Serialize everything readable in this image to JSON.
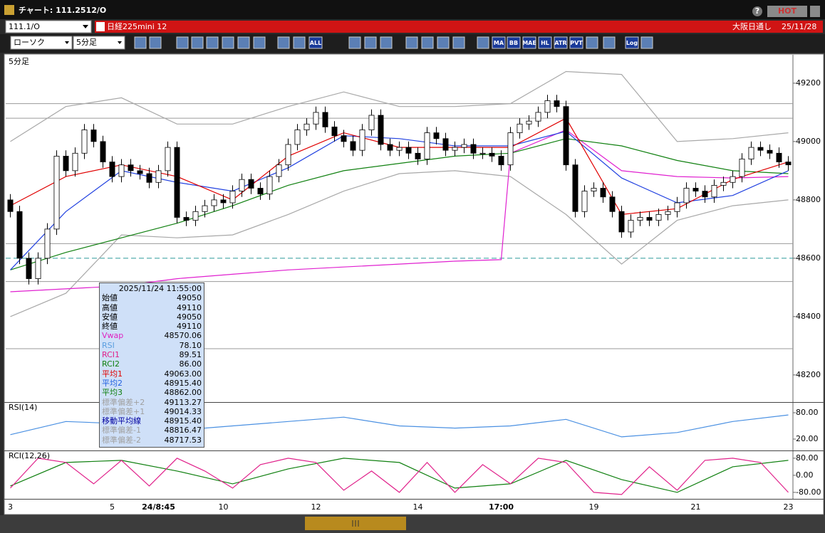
{
  "window": {
    "title": "チャート: 111.2512/O",
    "help": "?",
    "hot": "HOT"
  },
  "toolbar": {
    "symbol_code": "111.1/O",
    "symbol_name": "日経225mini 12",
    "market": "大阪日通し",
    "date": "25/11/28",
    "chart_kind": "ローソク",
    "interval": "5分足",
    "icon_labels": [
      "ALL",
      "MA",
      "BB",
      "MAE",
      "HL",
      "ATR",
      "PVT",
      "Log"
    ]
  },
  "info_panel": {
    "datetime": "2025/11/24  11:55:00",
    "rows": [
      {
        "label": "始値",
        "value": "49050",
        "color": "#000000"
      },
      {
        "label": "高値",
        "value": "49110",
        "color": "#000000"
      },
      {
        "label": "安値",
        "value": "49050",
        "color": "#000000"
      },
      {
        "label": "終値",
        "value": "49110",
        "color": "#000000"
      },
      {
        "label": "Vwap",
        "value": "48570.06",
        "color": "#e020c0"
      },
      {
        "label": "RSI",
        "value": "78.10",
        "color": "#5a9ee0"
      },
      {
        "label": "RCI1",
        "value": "89.51",
        "color": "#e0208a"
      },
      {
        "label": "RCI2",
        "value": "86.00",
        "color": "#108010"
      },
      {
        "label": "平均1",
        "value": "49063.00",
        "color": "#e00000"
      },
      {
        "label": "平均2",
        "value": "48915.40",
        "color": "#2060e0"
      },
      {
        "label": "平均3",
        "value": "48862.00",
        "color": "#108010"
      },
      {
        "label": "標準偏差+2",
        "value": "49113.27",
        "color": "#a0a0a0"
      },
      {
        "label": "標準偏差+1",
        "value": "49014.33",
        "color": "#a0a0a0"
      },
      {
        "label": "移動平均線",
        "value": "48915.40",
        "color": "#0000a0"
      },
      {
        "label": "標準偏差-1",
        "value": "48816.47",
        "color": "#a0a0a0"
      },
      {
        "label": "標準偏差-2",
        "value": "48717.53",
        "color": "#a0a0a0"
      }
    ]
  },
  "chart_data": [
    {
      "type": "candlestick",
      "label": "5分足",
      "xlim": [
        -0.5,
        84.5
      ],
      "ylim": [
        48107,
        49290
      ],
      "yticks": [
        48200,
        48400,
        48600,
        48800,
        49000,
        49200
      ],
      "categories": [
        "3",
        null,
        null,
        null,
        null,
        null,
        null,
        null,
        null,
        null,
        null,
        "5",
        null,
        null,
        null,
        null,
        "24/8:45",
        null,
        null,
        null,
        null,
        null,
        null,
        "10",
        null,
        null,
        null,
        null,
        null,
        null,
        null,
        null,
        null,
        "12",
        null,
        null,
        null,
        null,
        null,
        null,
        null,
        null,
        null,
        null,
        "14",
        null,
        null,
        null,
        null,
        null,
        null,
        null,
        null,
        "17:00",
        null,
        null,
        null,
        null,
        null,
        null,
        null,
        null,
        null,
        "19",
        null,
        null,
        null,
        null,
        null,
        null,
        null,
        null,
        null,
        null,
        "21",
        null,
        null,
        null,
        null,
        null,
        null,
        null,
        null,
        null,
        "23"
      ],
      "up_color": "#ffffff",
      "down_color": "#000000",
      "ohlc": [
        [
          48800,
          48820,
          48740,
          48760
        ],
        [
          48760,
          48780,
          48580,
          48600
        ],
        [
          48600,
          48620,
          48510,
          48530
        ],
        [
          48530,
          48620,
          48510,
          48600
        ],
        [
          48600,
          48720,
          48580,
          48700
        ],
        [
          48700,
          48970,
          48680,
          48950
        ],
        [
          48950,
          48970,
          48880,
          48900
        ],
        [
          48900,
          48980,
          48880,
          48960
        ],
        [
          48960,
          49060,
          48940,
          49040
        ],
        [
          49040,
          49060,
          48980,
          49000
        ],
        [
          49000,
          49020,
          48910,
          48930
        ],
        [
          48930,
          48950,
          48860,
          48880
        ],
        [
          48880,
          48940,
          48860,
          48920
        ],
        [
          48920,
          48940,
          48880,
          48900
        ],
        [
          48900,
          48920,
          48870,
          48890
        ],
        [
          48890,
          48910,
          48840,
          48860
        ],
        [
          48860,
          48920,
          48840,
          48900
        ],
        [
          48900,
          49000,
          48880,
          48980
        ],
        [
          48980,
          49000,
          48720,
          48740
        ],
        [
          48740,
          48760,
          48710,
          48730
        ],
        [
          48730,
          48780,
          48710,
          48760
        ],
        [
          48760,
          48800,
          48740,
          48780
        ],
        [
          48780,
          48820,
          48760,
          48800
        ],
        [
          48800,
          48820,
          48770,
          48790
        ],
        [
          48790,
          48850,
          48770,
          48830
        ],
        [
          48830,
          48890,
          48810,
          48870
        ],
        [
          48870,
          48890,
          48820,
          48840
        ],
        [
          48840,
          48860,
          48800,
          48820
        ],
        [
          48820,
          48900,
          48800,
          48880
        ],
        [
          48880,
          48940,
          48860,
          48920
        ],
        [
          48920,
          49010,
          48900,
          48990
        ],
        [
          48990,
          49060,
          48970,
          49040
        ],
        [
          49040,
          49080,
          49020,
          49060
        ],
        [
          49060,
          49120,
          49040,
          49100
        ],
        [
          49100,
          49120,
          49030,
          49050
        ],
        [
          49050,
          49070,
          49000,
          49020
        ],
        [
          49020,
          49040,
          48980,
          49000
        ],
        [
          49000,
          49020,
          48950,
          48970
        ],
        [
          48970,
          49060,
          48950,
          49040
        ],
        [
          49040,
          49110,
          49020,
          49090
        ],
        [
          49090,
          49110,
          48970,
          48990
        ],
        [
          48990,
          49010,
          48950,
          48970
        ],
        [
          48970,
          49000,
          48950,
          48980
        ],
        [
          48980,
          49000,
          48940,
          48960
        ],
        [
          48960,
          48980,
          48920,
          48940
        ],
        [
          48940,
          49050,
          48920,
          49030
        ],
        [
          49030,
          49050,
          48990,
          49010
        ],
        [
          49010,
          49030,
          48950,
          48970
        ],
        [
          48970,
          49000,
          48950,
          48980
        ],
        [
          48980,
          49010,
          48960,
          48990
        ],
        [
          48990,
          49010,
          48940,
          48960
        ],
        [
          48960,
          48980,
          48940,
          48960
        ],
        [
          48960,
          48980,
          48930,
          48950
        ],
        [
          48950,
          48970,
          48900,
          48920
        ],
        [
          48920,
          49050,
          48900,
          49030
        ],
        [
          49030,
          49080,
          49010,
          49060
        ],
        [
          49060,
          49090,
          49040,
          49070
        ],
        [
          49070,
          49120,
          49050,
          49100
        ],
        [
          49100,
          49160,
          49080,
          49140
        ],
        [
          49140,
          49160,
          49100,
          49120
        ],
        [
          49120,
          49140,
          48900,
          48920
        ],
        [
          48920,
          48940,
          48740,
          48760
        ],
        [
          48760,
          48850,
          48740,
          48830
        ],
        [
          48830,
          48860,
          48810,
          48840
        ],
        [
          48840,
          48860,
          48790,
          48810
        ],
        [
          48810,
          48830,
          48740,
          48760
        ],
        [
          48760,
          48780,
          48670,
          48690
        ],
        [
          48690,
          48750,
          48670,
          48730
        ],
        [
          48730,
          48760,
          48710,
          48740
        ],
        [
          48740,
          48760,
          48710,
          48730
        ],
        [
          48730,
          48770,
          48710,
          48750
        ],
        [
          48750,
          48780,
          48730,
          48760
        ],
        [
          48760,
          48810,
          48740,
          48790
        ],
        [
          48790,
          48860,
          48770,
          48840
        ],
        [
          48840,
          48860,
          48810,
          48830
        ],
        [
          48830,
          48850,
          48790,
          48810
        ],
        [
          48810,
          48870,
          48790,
          48850
        ],
        [
          48850,
          48880,
          48830,
          48860
        ],
        [
          48860,
          48900,
          48840,
          48880
        ],
        [
          48880,
          48960,
          48860,
          48940
        ],
        [
          48940,
          49000,
          48920,
          48980
        ],
        [
          48980,
          49000,
          48950,
          48970
        ],
        [
          48970,
          48990,
          48940,
          48960
        ],
        [
          48960,
          48980,
          48910,
          48930
        ],
        [
          48930,
          48950,
          48900,
          48920
        ]
      ],
      "series": [
        {
          "color": "#a8a8a8",
          "x": [
            0,
            6,
            12,
            18,
            24,
            30,
            36,
            42,
            48,
            54,
            60,
            66,
            72,
            78,
            84
          ],
          "values": [
            49000,
            49120,
            49150,
            49060,
            49060,
            49120,
            49170,
            49120,
            49120,
            49130,
            49240,
            49230,
            49000,
            49010,
            49030
          ]
        },
        {
          "color": "#a8a8a8",
          "x": [
            0,
            6,
            12,
            18,
            24,
            30,
            36,
            42,
            48,
            54,
            60,
            66,
            72,
            78,
            84
          ],
          "values": [
            48400,
            48480,
            48680,
            48670,
            48680,
            48750,
            48830,
            48890,
            48900,
            48880,
            48750,
            48580,
            48730,
            48780,
            48800
          ]
        },
        {
          "color": "#e020d0",
          "x": [
            0,
            6,
            12,
            18,
            24,
            30,
            36,
            42,
            48,
            53,
            54,
            60,
            66,
            72,
            78,
            84
          ],
          "values": [
            48485,
            48495,
            48505,
            48530,
            48545,
            48560,
            48570,
            48580,
            48590,
            48595,
            48960,
            49040,
            48900,
            48880,
            48875,
            48880
          ]
        },
        {
          "color": "#108010",
          "x": [
            0,
            6,
            12,
            18,
            24,
            30,
            36,
            42,
            48,
            54,
            60,
            66,
            72,
            78,
            84
          ],
          "values": [
            48560,
            48620,
            48670,
            48720,
            48780,
            48850,
            48900,
            48925,
            48950,
            48960,
            49010,
            48985,
            48935,
            48900,
            48890
          ]
        },
        {
          "color": "#2040e0",
          "x": [
            0,
            6,
            12,
            18,
            24,
            30,
            36,
            42,
            48,
            54,
            60,
            66,
            72,
            78,
            84
          ],
          "values": [
            48560,
            48760,
            48900,
            48860,
            48830,
            48910,
            49020,
            49010,
            48985,
            48985,
            49035,
            48875,
            48790,
            48815,
            48900
          ]
        },
        {
          "color": "#e00000",
          "x": [
            0,
            6,
            12,
            18,
            24,
            30,
            36,
            42,
            48,
            54,
            60,
            66,
            72,
            78,
            84
          ],
          "values": [
            48780,
            48880,
            48920,
            48880,
            48800,
            48950,
            49030,
            48980,
            48980,
            48980,
            49080,
            48750,
            48770,
            48870,
            48930
          ]
        }
      ],
      "hlines": [
        {
          "value": 49130,
          "color": "#9a9a9a"
        },
        {
          "value": 49080,
          "color": "#9a9a9a"
        },
        {
          "value": 48650,
          "color": "#9a9a9a"
        },
        {
          "value": 48520,
          "color": "#9a9a9a"
        },
        {
          "value": 48290,
          "color": "#9a9a9a"
        },
        {
          "value": 48600,
          "color": "#2a9a9a",
          "dash": true
        }
      ]
    },
    {
      "type": "line",
      "label": "RSI(14)",
      "xlim": [
        -0.5,
        84.5
      ],
      "ylim": [
        -4.3,
        102.7
      ],
      "yticks": [
        {
          "value": 80,
          "label": "80.00"
        },
        {
          "value": 20,
          "label": "20.00"
        }
      ],
      "series": [
        {
          "color": "#4a90e2",
          "x": [
            0,
            6,
            12,
            18,
            24,
            30,
            36,
            42,
            48,
            54,
            60,
            66,
            72,
            78,
            84
          ],
          "values": [
            30,
            60,
            55,
            40,
            50,
            60,
            70,
            50,
            45,
            50,
            65,
            25,
            35,
            60,
            75
          ]
        }
      ]
    },
    {
      "type": "line",
      "label": "RCI(12,26)",
      "xlim": [
        -0.5,
        84.5
      ],
      "ylim": [
        -107,
        113
      ],
      "yticks": [
        {
          "value": 80,
          "label": "80.00"
        },
        {
          "value": 0,
          "label": "0.00"
        },
        {
          "value": -80,
          "label": "-80.00"
        }
      ],
      "series": [
        {
          "color": "#108010",
          "x": [
            0,
            6,
            12,
            18,
            24,
            30,
            36,
            42,
            48,
            54,
            60,
            66,
            72,
            78,
            84
          ],
          "values": [
            -50,
            60,
            70,
            20,
            -40,
            30,
            80,
            60,
            -60,
            -40,
            70,
            -20,
            -80,
            40,
            70
          ]
        },
        {
          "color": "#e0208a",
          "x": [
            0,
            3,
            6,
            9,
            12,
            15,
            18,
            21,
            24,
            27,
            30,
            33,
            36,
            39,
            42,
            45,
            48,
            51,
            54,
            57,
            60,
            63,
            66,
            69,
            72,
            75,
            78,
            81,
            84
          ],
          "values": [
            -60,
            80,
            60,
            -40,
            70,
            -50,
            80,
            20,
            -60,
            50,
            80,
            60,
            -70,
            20,
            -80,
            60,
            -80,
            50,
            -40,
            80,
            60,
            -80,
            -90,
            40,
            -70,
            70,
            80,
            60,
            -80
          ]
        }
      ]
    }
  ]
}
